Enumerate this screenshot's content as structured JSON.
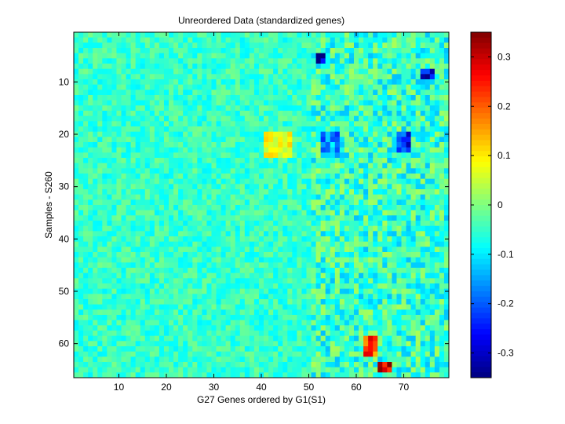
{
  "chart_data": {
    "type": "heatmap",
    "title": "Unreordered Data (standardized genes)",
    "xlabel": "G27 Genes ordered by G1(S1)",
    "ylabel": "Samples - S260",
    "n_cols": 79,
    "n_rows": 66,
    "x_ticks": [
      10,
      20,
      30,
      40,
      50,
      60,
      70
    ],
    "y_ticks": [
      10,
      20,
      30,
      40,
      50,
      60
    ],
    "colorbar": {
      "min": -0.35,
      "max": 0.35,
      "ticks": [
        0.3,
        0.2,
        0.1,
        0,
        -0.1,
        -0.2,
        -0.3
      ],
      "colormap": "jet"
    },
    "background_level": -0.05,
    "regions": [
      {
        "rows": [
          1,
          66
        ],
        "cols": [
          1,
          79
        ],
        "value": -0.05
      },
      {
        "rows": [
          20,
          24
        ],
        "cols": [
          41,
          46
        ],
        "value": 0.08
      },
      {
        "rows": [
          20,
          23
        ],
        "cols": [
          69,
          71
        ],
        "value": -0.24
      },
      {
        "rows": [
          20,
          24
        ],
        "cols": [
          53,
          56
        ],
        "value": -0.16
      },
      {
        "rows": [
          5,
          6
        ],
        "cols": [
          52,
          53
        ],
        "value": -0.3
      },
      {
        "rows": [
          64,
          65
        ],
        "cols": [
          65,
          67
        ],
        "value": 0.3
      },
      {
        "rows": [
          59,
          62
        ],
        "cols": [
          62,
          64
        ],
        "value": 0.22
      },
      {
        "rows": [
          8,
          9
        ],
        "cols": [
          74,
          76
        ],
        "value": -0.28
      }
    ],
    "grid": false,
    "legend": "none"
  }
}
